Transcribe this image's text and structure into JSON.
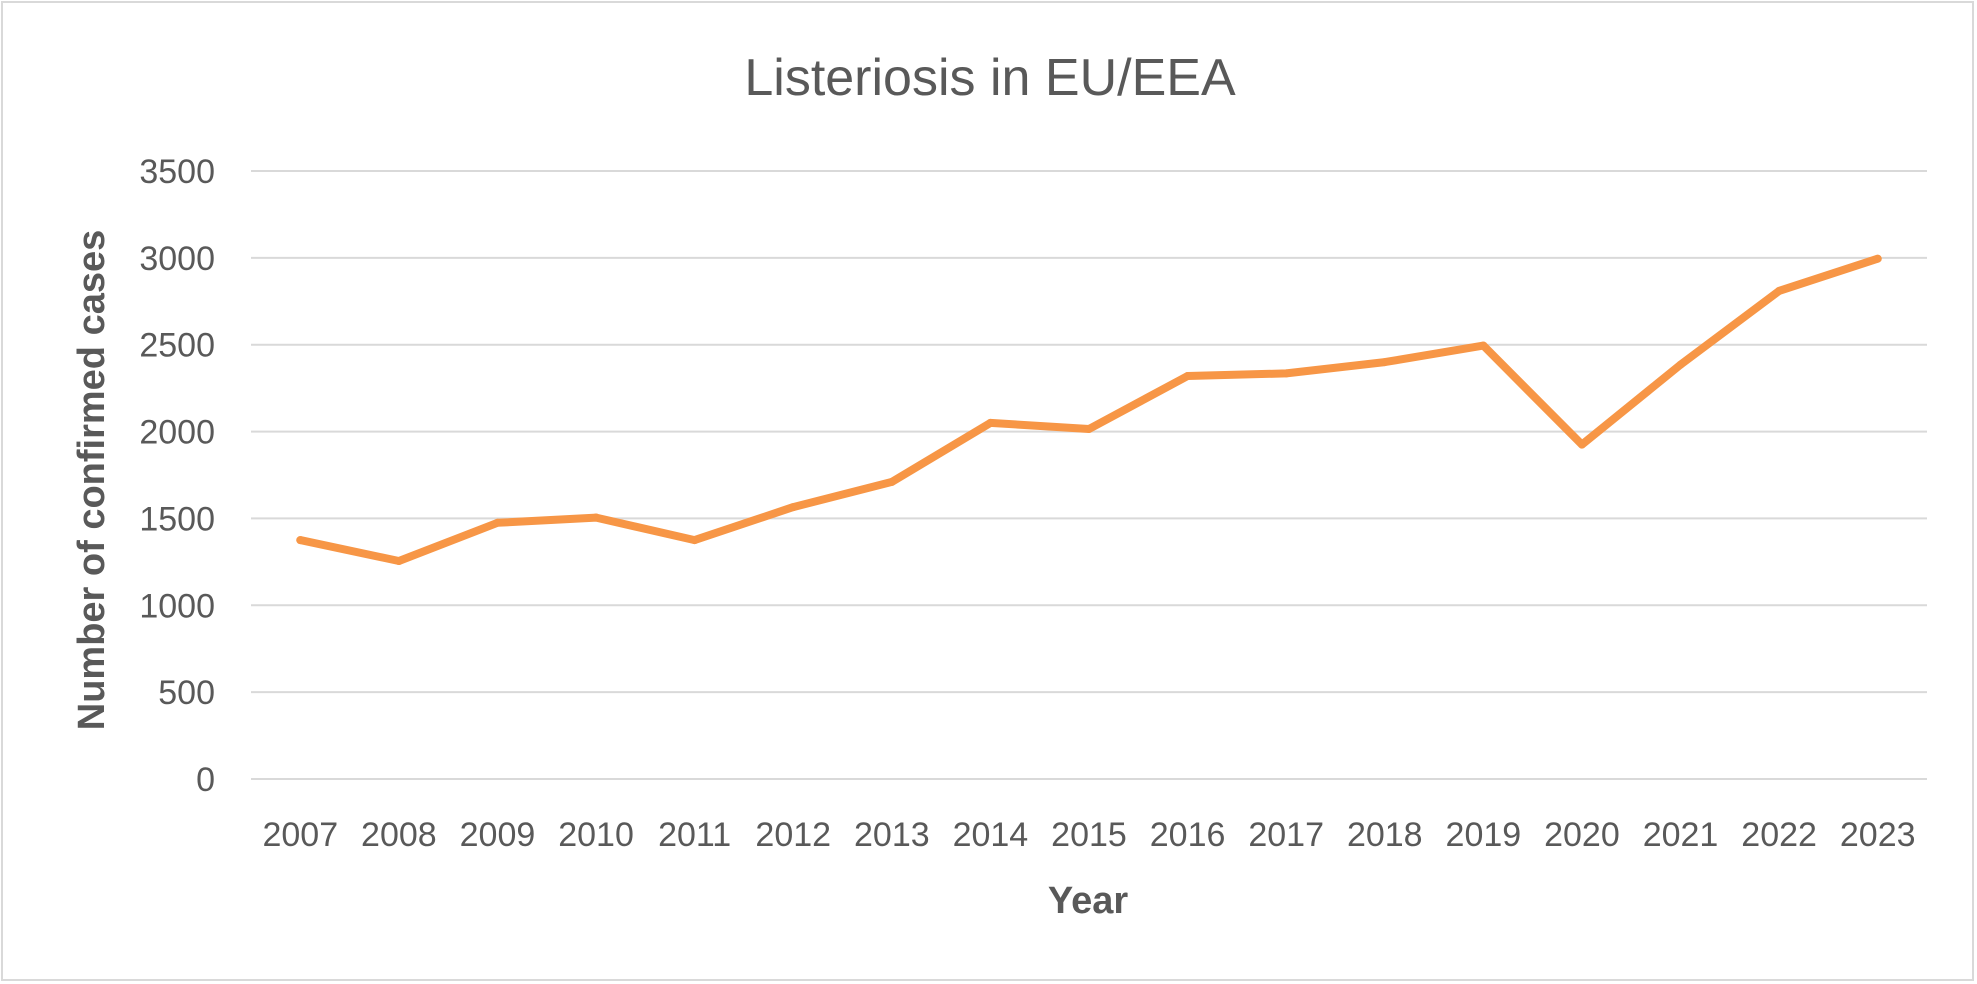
{
  "chart_data": {
    "type": "line",
    "title": "Listeriosis in EU/EEA",
    "xlabel": "Year",
    "ylabel": "Number of confirmed cases",
    "categories": [
      "2007",
      "2008",
      "2009",
      "2010",
      "2011",
      "2012",
      "2013",
      "2014",
      "2015",
      "2016",
      "2017",
      "2018",
      "2019",
      "2020",
      "2021",
      "2022",
      "2023"
    ],
    "series": [
      {
        "values": [
          1375,
          1255,
          1475,
          1505,
          1375,
          1565,
          1710,
          2050,
          2015,
          2320,
          2335,
          2400,
          2495,
          1925,
          2385,
          2810,
          2995
        ],
        "color": "#f79646"
      }
    ],
    "ylim": [
      0,
      3500
    ],
    "yticks": [
      0,
      500,
      1000,
      1500,
      2000,
      2500,
      3000,
      3500
    ],
    "grid": true,
    "legend": "none"
  }
}
